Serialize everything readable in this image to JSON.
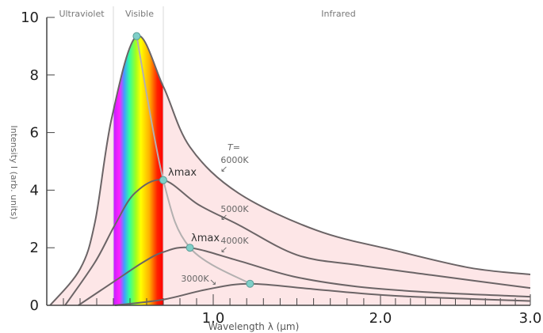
{
  "chart_data": {
    "type": "line",
    "title": "",
    "xlabel": "Wavelength λ (µm)",
    "ylabel": "Intensity I (arb. units)",
    "xlim": [
      0,
      3.0
    ],
    "ylim": [
      0,
      10
    ],
    "x_ticks": [
      {
        "value": 1.0,
        "label": "1.0"
      },
      {
        "value": 2.0,
        "label": "2.0"
      },
      {
        "value": 3.0,
        "label": "3.0"
      }
    ],
    "y_ticks": [
      {
        "value": 0,
        "label": "0"
      },
      {
        "value": 2,
        "label": "2"
      },
      {
        "value": 4,
        "label": "4"
      },
      {
        "value": 6,
        "label": "6"
      },
      {
        "value": 8,
        "label": "8"
      },
      {
        "value": 10,
        "label": "10"
      }
    ],
    "regions": [
      {
        "label": "Ultraviolet",
        "from": 0,
        "to": 0.4
      },
      {
        "label": "Visible",
        "from": 0.4,
        "to": 0.7
      },
      {
        "label": "Infrared",
        "from": 0.7,
        "to": 3.0
      }
    ],
    "temperature_prefix": "T=",
    "series": [
      {
        "name": "6000K",
        "x": [
          0.02,
          0.2,
          0.29,
          0.39,
          0.54,
          0.7,
          0.86,
          1.15,
          1.62,
          2.1,
          2.6,
          3.0
        ],
        "y": [
          0,
          1.26,
          2.9,
          6.5,
          9.35,
          7.6,
          5.5,
          3.9,
          2.6,
          1.9,
          1.3,
          1.07
        ]
      },
      {
        "name": "5000K",
        "x": [
          0.11,
          0.29,
          0.41,
          0.53,
          0.7,
          0.91,
          1.15,
          1.5,
          1.86,
          2.34,
          3.0
        ],
        "y": [
          0,
          1.5,
          2.8,
          3.9,
          4.35,
          3.5,
          2.8,
          1.75,
          1.4,
          1.05,
          0.6
        ]
      },
      {
        "name": "4000K",
        "x": [
          0.19,
          0.41,
          0.58,
          0.7,
          0.86,
          1.15,
          1.48,
          1.86,
          2.34,
          3.0
        ],
        "y": [
          0,
          0.85,
          1.5,
          1.85,
          2.0,
          1.55,
          1.0,
          0.65,
          0.45,
          0.3
        ]
      },
      {
        "name": "3000K",
        "x": [
          0.41,
          0.7,
          0.96,
          1.22,
          1.62,
          2.1,
          3.0
        ],
        "y": [
          0,
          0.2,
          0.55,
          0.75,
          0.55,
          0.33,
          0.15
        ]
      }
    ],
    "peak_locus": {
      "label": "λmax",
      "x": [
        0.54,
        0.7,
        0.86,
        1.22
      ],
      "y": [
        9.35,
        4.35,
        2.0,
        0.75
      ]
    },
    "colors": {
      "curve": "#6b6466",
      "fill": "#fde6e7",
      "locus": "#b3b0b0",
      "marker": "#7fcfc8",
      "divider": "#d8d8d8"
    }
  }
}
